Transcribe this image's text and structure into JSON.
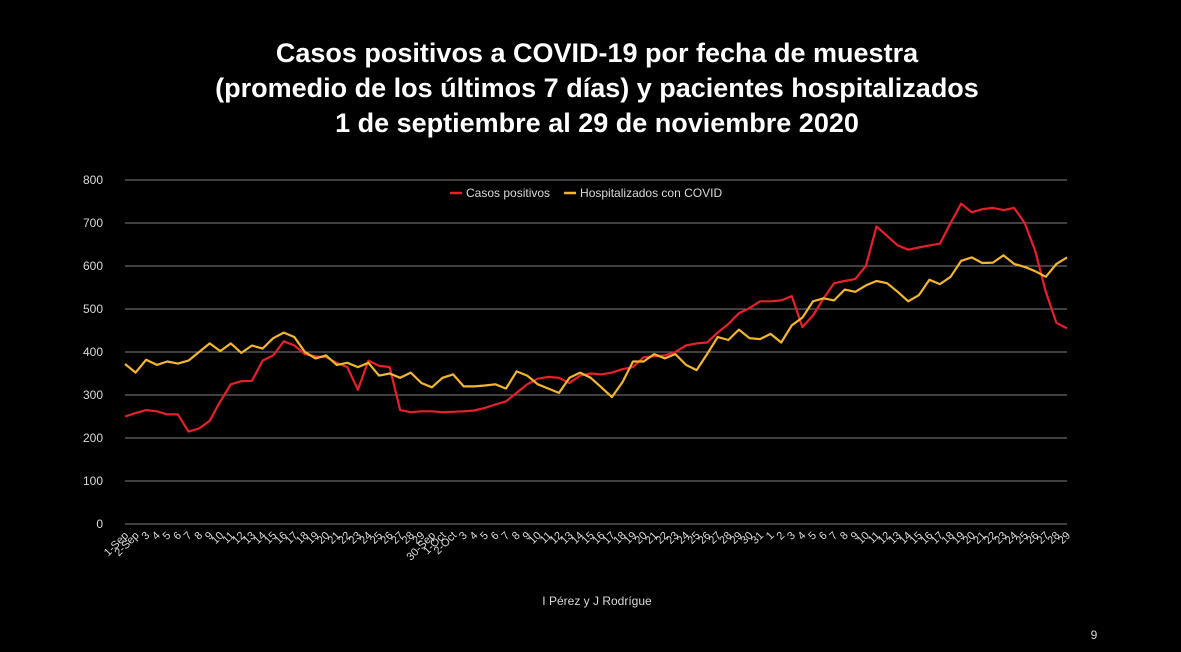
{
  "chart_data": {
    "type": "line",
    "title_lines": [
      "Casos positivos a COVID-19 por fecha de muestra",
      "(promedio de los últimos 7 días) y pacientes hospitalizados",
      "1 de septiembre al 29 de  noviembre 2020"
    ],
    "categories": [
      "1-Sep",
      "2-Sep",
      "3",
      "4",
      "5",
      "6",
      "7",
      "8",
      "9",
      "10",
      "11",
      "12",
      "13",
      "14",
      "15",
      "16",
      "17",
      "18",
      "19",
      "20",
      "21",
      "22",
      "23",
      "24",
      "25",
      "26",
      "27",
      "28",
      "29",
      "30-Sep",
      "1-Oct",
      "2-Oct",
      "3",
      "4",
      "5",
      "6",
      "7",
      "8",
      "9",
      "10",
      "11",
      "12",
      "13",
      "14",
      "15",
      "16",
      "17",
      "18",
      "19",
      "20",
      "21",
      "22",
      "23",
      "24",
      "25",
      "26",
      "27",
      "28",
      "29",
      "30",
      "31",
      "1",
      "2",
      "3",
      "4",
      "5",
      "6",
      "7",
      "8",
      "9",
      "10",
      "11",
      "12",
      "13",
      "14",
      "15",
      "16",
      "17",
      "18",
      "19",
      "20",
      "21",
      "22",
      "23",
      "24",
      "25",
      "26",
      "27",
      "28",
      "29"
    ],
    "series": [
      {
        "name": "Casos positivos",
        "color": "#e8202a",
        "values": [
          250,
          258,
          265,
          262,
          255,
          255,
          215,
          222,
          240,
          285,
          325,
          332,
          333,
          380,
          392,
          425,
          415,
          395,
          390,
          388,
          375,
          365,
          312,
          380,
          368,
          365,
          265,
          260,
          262,
          262,
          260,
          261,
          262,
          264,
          270,
          278,
          285,
          305,
          325,
          338,
          342,
          340,
          328,
          345,
          350,
          348,
          352,
          360,
          365,
          388,
          390,
          392,
          400,
          415,
          420,
          422,
          445,
          465,
          490,
          502,
          518,
          518,
          520,
          530,
          458,
          485,
          525,
          560,
          565,
          570,
          600,
          692,
          670,
          648,
          638,
          643,
          648,
          652,
          700,
          745,
          725,
          732,
          735,
          730,
          735,
          700,
          635,
          540,
          468,
          455
        ]
      },
      {
        "name": "Hospitalizados con COVID",
        "color": "#f2b632",
        "values": [
          372,
          352,
          382,
          370,
          378,
          373,
          380,
          400,
          420,
          402,
          420,
          398,
          415,
          408,
          432,
          445,
          435,
          400,
          385,
          392,
          370,
          375,
          365,
          375,
          345,
          350,
          340,
          352,
          328,
          318,
          340,
          348,
          320,
          320,
          322,
          325,
          315,
          355,
          345,
          325,
          315,
          305,
          340,
          352,
          340,
          318,
          295,
          330,
          378,
          378,
          395,
          385,
          395,
          370,
          358,
          395,
          435,
          428,
          452,
          432,
          430,
          442,
          422,
          462,
          480,
          518,
          525,
          520,
          545,
          540,
          555,
          565,
          560,
          540,
          518,
          532,
          568,
          558,
          575,
          612,
          620,
          607,
          608,
          625,
          605,
          598,
          588,
          575,
          605,
          620
        ]
      }
    ],
    "ylim": [
      0,
      800
    ],
    "yticks": [
      0,
      100,
      200,
      300,
      400,
      500,
      600,
      700,
      800
    ],
    "grid": true,
    "legend": "top",
    "source": "I Pérez y J Rodrígue",
    "page_number": "9"
  }
}
